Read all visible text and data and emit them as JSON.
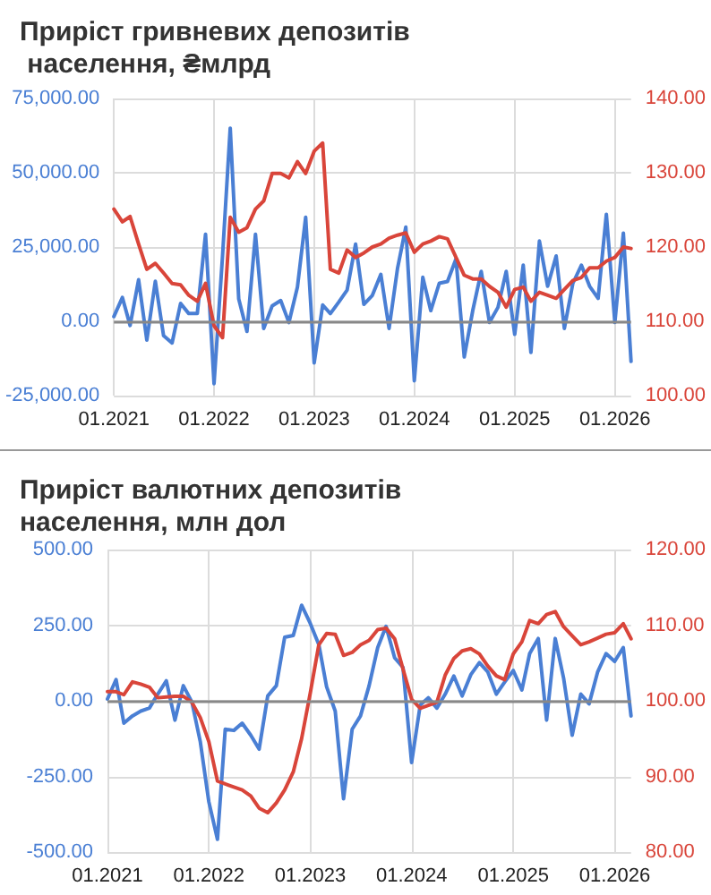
{
  "chart_data": [
    {
      "type": "line",
      "title": "Приріст гривневих депозитів населення, ₴млрд",
      "x": [
        "2021-01",
        "2021-02",
        "2021-03",
        "2021-04",
        "2021-05",
        "2021-06",
        "2021-07",
        "2021-08",
        "2021-09",
        "2021-10",
        "2021-11",
        "2021-12",
        "2022-01",
        "2022-02",
        "2022-03",
        "2022-04",
        "2022-05",
        "2022-06",
        "2022-07",
        "2022-08",
        "2022-09",
        "2022-10",
        "2022-11",
        "2022-12",
        "2023-01",
        "2023-02",
        "2023-03",
        "2023-04",
        "2023-05",
        "2023-06",
        "2023-07",
        "2023-08",
        "2023-09",
        "2023-10",
        "2023-11",
        "2023-12",
        "2024-01",
        "2024-02",
        "2024-03",
        "2024-04",
        "2024-05",
        "2024-06",
        "2024-07",
        "2024-08",
        "2024-09",
        "2024-10",
        "2024-11",
        "2024-12",
        "2025-01",
        "2025-02",
        "2025-03",
        "2025-04",
        "2025-05",
        "2025-06",
        "2025-07",
        "2025-08",
        "2025-09",
        "2025-10",
        "2025-11",
        "2025-12",
        "2026-01",
        "2026-02",
        "2026-03"
      ],
      "series": [
        {
          "color": "#4a7fd4",
          "values": [
            1600,
            8000,
            -1400,
            14000,
            -6300,
            13500,
            -4800,
            -7300,
            6000,
            2600,
            2600,
            29300,
            -21000,
            22000,
            65000,
            7500,
            -3400,
            29300,
            -2400,
            5200,
            7000,
            -400,
            11500,
            35000,
            -14000,
            5500,
            2600,
            6500,
            10500,
            26000,
            5700,
            8700,
            15800,
            -2400,
            17900,
            31700,
            -20000,
            14800,
            3600,
            12800,
            13400,
            21000,
            -12000,
            3600,
            16800,
            -400,
            4700,
            16800,
            -4400,
            18900,
            -10500,
            27000,
            11800,
            22000,
            -2400,
            12800,
            18900,
            11800,
            7700,
            36000,
            -400,
            29700,
            -13500
          ]
        },
        {
          "color": "#d9453a",
          "axis": "y2",
          "values": [
            125.1,
            123.4,
            124.1,
            120.4,
            117,
            117.8,
            116.5,
            115.1,
            114.9,
            113.5,
            112.7,
            115.1,
            109.4,
            107.8,
            124,
            122,
            122.6,
            125.1,
            126.2,
            129.9,
            129.9,
            129.3,
            131.5,
            129.9,
            132.9,
            134,
            117,
            116.5,
            119.6,
            118.6,
            119.2,
            120,
            120.4,
            121.2,
            121.6,
            121.9,
            119.3,
            120.4,
            120.8,
            121.4,
            121.1,
            118.6,
            116.2,
            115.7,
            115.7,
            114.7,
            113.9,
            111.9,
            114.3,
            114.6,
            112.7,
            113.9,
            113.5,
            113.1,
            114.3,
            115.5,
            115.9,
            117.2,
            117.2,
            118.1,
            118.6,
            120,
            119.8
          ]
        }
      ],
      "xlim": [
        "2021-01",
        "2026-03"
      ],
      "xticks": [
        {
          "value": "2021-01",
          "label": "01.2021"
        },
        {
          "value": "2022-01",
          "label": "01.2022"
        },
        {
          "value": "2023-01",
          "label": "01.2023"
        },
        {
          "value": "2024-01",
          "label": "01.2024"
        },
        {
          "value": "2025-01",
          "label": "01.2025"
        },
        {
          "value": "2026-01",
          "label": "01.2026"
        }
      ],
      "ylim": [
        -25000,
        75000
      ],
      "yticks": [
        {
          "value": -25000,
          "label": "-25,000.00"
        },
        {
          "value": 0,
          "label": "0.00"
        },
        {
          "value": 25000,
          "label": "25,000.00"
        },
        {
          "value": 50000,
          "label": "50,000.00"
        },
        {
          "value": 75000,
          "label": "75,000.00"
        }
      ],
      "y2lim": [
        100,
        140
      ],
      "y2ticks": [
        {
          "value": 100,
          "label": "100.00"
        },
        {
          "value": 110,
          "label": "110.00"
        },
        {
          "value": 120,
          "label": "120.00"
        },
        {
          "value": 130,
          "label": "130.00"
        },
        {
          "value": 140,
          "label": "140.00"
        }
      ],
      "grid": true,
      "marker": "none"
    },
    {
      "type": "line",
      "title": "Приріст валютних депозитів населення, млн дол",
      "x": [
        "2021-01",
        "2021-02",
        "2021-03",
        "2021-04",
        "2021-05",
        "2021-06",
        "2021-07",
        "2021-08",
        "2021-09",
        "2021-10",
        "2021-11",
        "2021-12",
        "2022-01",
        "2022-02",
        "2022-03",
        "2022-04",
        "2022-05",
        "2022-06",
        "2022-07",
        "2022-08",
        "2022-09",
        "2022-10",
        "2022-11",
        "2022-12",
        "2023-01",
        "2023-02",
        "2023-03",
        "2023-04",
        "2023-05",
        "2023-06",
        "2023-07",
        "2023-08",
        "2023-09",
        "2023-10",
        "2023-11",
        "2023-12",
        "2024-01",
        "2024-02",
        "2024-03",
        "2024-04",
        "2024-05",
        "2024-06",
        "2024-07",
        "2024-08",
        "2024-09",
        "2024-10",
        "2024-11",
        "2024-12",
        "2025-01",
        "2025-02",
        "2025-03",
        "2025-04",
        "2025-05",
        "2025-06",
        "2025-07",
        "2025-08",
        "2025-09",
        "2025-10",
        "2025-11",
        "2025-12",
        "2026-01",
        "2026-02",
        "2026-03"
      ],
      "series": [
        {
          "color": "#4a7fd4",
          "values": [
            6,
            70,
            -74,
            -50,
            -34,
            -24,
            22,
            66,
            -64,
            50,
            -4,
            -134,
            -334,
            -458,
            -94,
            -98,
            -74,
            -114,
            -160,
            16,
            50,
            210,
            216,
            316,
            256,
            186,
            46,
            -34,
            -324,
            -94,
            -50,
            50,
            176,
            246,
            142,
            110,
            -204,
            -14,
            10,
            -24,
            22,
            82,
            16,
            86,
            126,
            96,
            22,
            62,
            100,
            36,
            156,
            206,
            -64,
            206,
            76,
            -114,
            22,
            -10,
            96,
            156,
            130,
            176,
            -50
          ]
        },
        {
          "color": "#d9453a",
          "axis": "y2",
          "values": [
            101.2,
            101.2,
            100.8,
            102.5,
            102.2,
            101.8,
            100.4,
            100.5,
            100.6,
            100.6,
            99.8,
            97.8,
            94.6,
            89.4,
            89,
            88.6,
            88.2,
            87.4,
            85.8,
            85.2,
            86.5,
            88.2,
            90.6,
            95,
            101,
            107.4,
            108.9,
            108.8,
            106,
            106.4,
            107.4,
            108,
            109.4,
            109.6,
            108.2,
            104.2,
            100.2,
            99,
            99.4,
            99.8,
            103.4,
            105.6,
            106.6,
            106.9,
            106.2,
            104.6,
            103.3,
            102.8,
            106.2,
            107.8,
            110.6,
            110.2,
            111.4,
            111.8,
            109.8,
            108.6,
            107.4,
            107.8,
            108.3,
            108.8,
            109,
            110.2,
            108.2
          ]
        }
      ],
      "xlim": [
        "2021-01",
        "2026-03"
      ],
      "xticks": [
        {
          "value": "2021-01",
          "label": "01.2021"
        },
        {
          "value": "2022-01",
          "label": "01.2022"
        },
        {
          "value": "2023-01",
          "label": "01.2023"
        },
        {
          "value": "2024-01",
          "label": "01.2024"
        },
        {
          "value": "2025-01",
          "label": "01.2025"
        },
        {
          "value": "2026-01",
          "label": "01.2026"
        }
      ],
      "ylim": [
        -500,
        500
      ],
      "yticks": [
        {
          "value": -500,
          "label": "-500.00"
        },
        {
          "value": -250,
          "label": "-250.00"
        },
        {
          "value": 0,
          "label": "0.00"
        },
        {
          "value": 250,
          "label": "250.00"
        },
        {
          "value": 500,
          "label": "500.00"
        }
      ],
      "y2lim": [
        80,
        120
      ],
      "y2ticks": [
        {
          "value": 80,
          "label": "80.00"
        },
        {
          "value": 90,
          "label": "90.00"
        },
        {
          "value": 100,
          "label": "100.00"
        },
        {
          "value": 110,
          "label": "110.00"
        },
        {
          "value": 120,
          "label": "120.00"
        }
      ],
      "grid": true,
      "marker": "none"
    }
  ]
}
